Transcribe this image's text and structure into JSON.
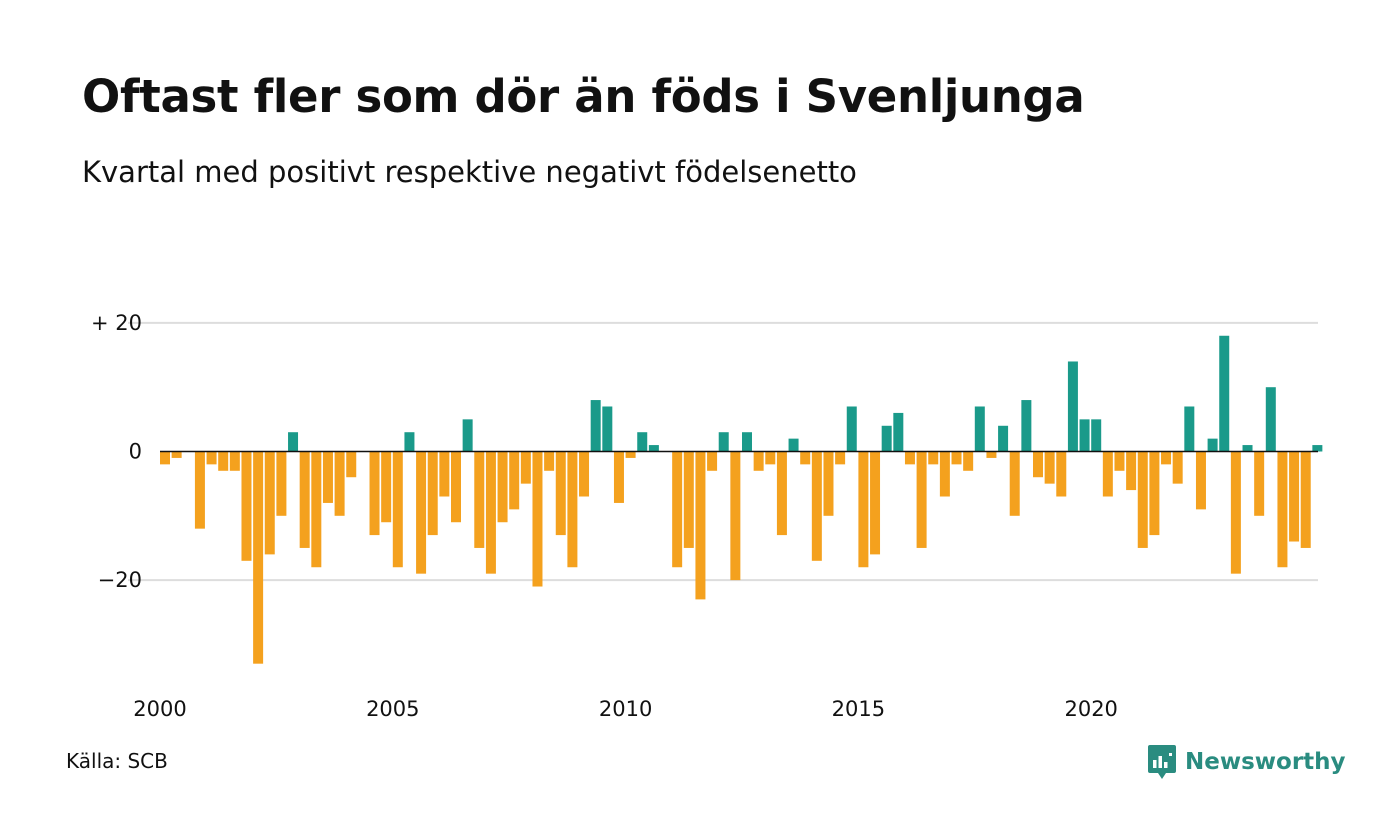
{
  "header": {
    "title": "Oftast fler som dör än föds i Svenljunga",
    "subtitle": "Kvartal med positivt respektive negativt födelsenetto"
  },
  "footer": {
    "source": "Källa: SCB",
    "brand": "Newsworthy",
    "brand_icon": "newsworthy-logo-icon"
  },
  "colors": {
    "positive": "#1a9a8a",
    "negative": "#f4a11e",
    "grid": "#dddddd",
    "zero_line": "#111111",
    "brand": "#2a8c80"
  },
  "chart_data": {
    "type": "bar",
    "title": "Oftast fler som dör än föds i Svenljunga",
    "subtitle": "Kvartal med positivt respektive negativt födelsenetto",
    "x_start": 2000,
    "period": "quarter",
    "x_ticks": [
      "2000",
      "2005",
      "2010",
      "2015",
      "2020"
    ],
    "y_ticks": [
      {
        "value": 20,
        "label": "+ 20"
      },
      {
        "value": 0,
        "label": "0"
      },
      {
        "value": -20,
        "label": "−20"
      }
    ],
    "ylim": [
      -35,
      21
    ],
    "grid": true,
    "values": [
      -2,
      -1,
      0,
      -12,
      -2,
      -3,
      -3,
      -17,
      -33,
      -16,
      -10,
      3,
      -15,
      -18,
      -8,
      -10,
      -4,
      0,
      -13,
      -11,
      -18,
      3,
      -19,
      -13,
      -7,
      -11,
      5,
      -15,
      -19,
      -11,
      -9,
      -5,
      -21,
      -3,
      -13,
      -18,
      -7,
      8,
      7,
      -8,
      -1,
      3,
      1,
      0,
      -18,
      -15,
      -23,
      -3,
      3,
      -20,
      3,
      -3,
      -2,
      -13,
      2,
      -2,
      -17,
      -10,
      -2,
      7,
      -18,
      -16,
      4,
      6,
      -2,
      -15,
      -2,
      -7,
      -2,
      -3,
      7,
      -1,
      4,
      -10,
      8,
      -4,
      -5,
      -7,
      14,
      5,
      5,
      -7,
      -3,
      -6,
      -15,
      -13,
      -2,
      -5,
      7,
      -9,
      2,
      18,
      -19,
      1,
      -10,
      10,
      -18,
      -14,
      -15,
      1
    ]
  }
}
